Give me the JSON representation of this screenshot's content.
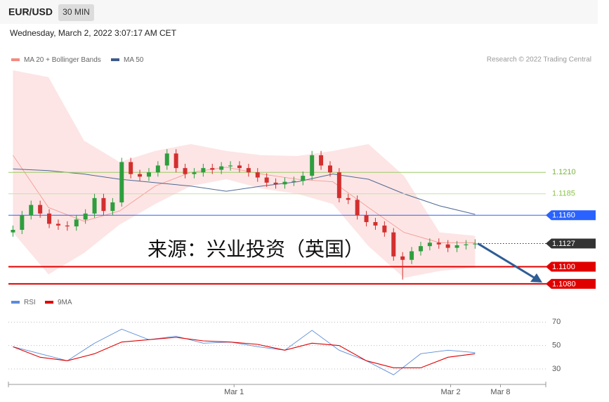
{
  "header": {
    "symbol": "EUR/USD",
    "interval": "30 MIN",
    "date": "Wednesday, March 2, 2022 3:07:17 AM CET",
    "credit": "Research © 2022 Trading Central"
  },
  "chart_data": [
    {
      "type": "candlestick",
      "xlim": [
        -0.5,
        58.8
      ],
      "ylim": [
        1.1075,
        1.1329
      ],
      "up_color": "#2e9e3e",
      "down_color": "#d32f2f",
      "open": [
        1.114,
        1.1143,
        1.116,
        1.1172,
        1.1162,
        1.115,
        1.1148,
        1.1147,
        1.1155,
        1.1162,
        1.118,
        1.1165,
        1.1175,
        1.1222,
        1.1208,
        1.1205,
        1.121,
        1.1218,
        1.1232,
        1.1215,
        1.1208,
        1.121,
        1.1215,
        1.1213,
        1.1217,
        1.1218,
        1.1215,
        1.121,
        1.1204,
        1.1198,
        1.1196,
        1.1199,
        1.12,
        1.1206,
        1.123,
        1.1218,
        1.121,
        1.118,
        1.1178,
        1.116,
        1.1152,
        1.1148,
        1.114,
        1.1112,
        1.1108,
        1.1118,
        1.1124,
        1.1128,
        1.1126,
        1.1122,
        1.1125,
        1.1126
      ],
      "high": [
        1.1148,
        1.1165,
        1.1177,
        1.1177,
        1.1167,
        1.1155,
        1.1153,
        1.116,
        1.1167,
        1.1185,
        1.1185,
        1.118,
        1.1227,
        1.1227,
        1.1213,
        1.1215,
        1.1223,
        1.1237,
        1.1237,
        1.122,
        1.1215,
        1.122,
        1.122,
        1.1222,
        1.1223,
        1.1223,
        1.122,
        1.1215,
        1.1209,
        1.1203,
        1.1204,
        1.1205,
        1.1211,
        1.1235,
        1.1235,
        1.1223,
        1.1215,
        1.1185,
        1.1183,
        1.1165,
        1.1157,
        1.1153,
        1.1145,
        1.1117,
        1.1123,
        1.1129,
        1.1133,
        1.1133,
        1.1131,
        1.113,
        1.1131,
        1.1132
      ],
      "low": [
        1.1135,
        1.1138,
        1.1155,
        1.1157,
        1.1145,
        1.1143,
        1.1142,
        1.1142,
        1.115,
        1.1157,
        1.116,
        1.116,
        1.117,
        1.1203,
        1.12,
        1.12,
        1.1205,
        1.1213,
        1.121,
        1.1203,
        1.1203,
        1.1205,
        1.1208,
        1.1208,
        1.1212,
        1.121,
        1.1205,
        1.1199,
        1.1193,
        1.1191,
        1.1191,
        1.1194,
        1.1195,
        1.1201,
        1.1213,
        1.1205,
        1.1175,
        1.1173,
        1.1155,
        1.1147,
        1.1143,
        1.1135,
        1.1107,
        1.1085,
        1.1103,
        1.1113,
        1.1119,
        1.1121,
        1.1117,
        1.1117,
        1.112,
        1.1121
      ],
      "close": [
        1.1143,
        1.116,
        1.1172,
        1.1162,
        1.115,
        1.1148,
        1.1147,
        1.1155,
        1.1162,
        1.118,
        1.1165,
        1.1175,
        1.1222,
        1.1208,
        1.1205,
        1.121,
        1.1218,
        1.1232,
        1.1215,
        1.1208,
        1.121,
        1.1215,
        1.1213,
        1.1217,
        1.1218,
        1.1215,
        1.121,
        1.1204,
        1.1198,
        1.1196,
        1.1199,
        1.12,
        1.1206,
        1.123,
        1.1218,
        1.121,
        1.118,
        1.1178,
        1.116,
        1.1152,
        1.1148,
        1.114,
        1.1112,
        1.1108,
        1.1118,
        1.1124,
        1.1128,
        1.1126,
        1.1122,
        1.1125,
        1.1126,
        1.1127
      ],
      "series": [
        {
          "name": "MA 20 + Bollinger Bands",
          "color": "#f28b82",
          "values": [
            1.123,
            1.1169,
            1.1153,
            1.1165,
            1.1194,
            1.121,
            1.1216,
            1.1208,
            1.1202,
            1.1199,
            1.1169,
            1.114,
            1.1128,
            1.1128
          ],
          "upper": [
            1.1329,
            1.1321,
            1.1247,
            1.1222,
            1.1235,
            1.1243,
            1.1235,
            1.123,
            1.1229,
            1.1235,
            1.1243,
            1.1206,
            1.114,
            1.1136
          ],
          "lower": [
            1.114,
            1.1091,
            1.1116,
            1.1149,
            1.1173,
            1.1194,
            1.1202,
            1.1191,
            1.1185,
            1.1173,
            1.1124,
            1.1087,
            1.1095,
            1.1099
          ]
        },
        {
          "name": "MA 50",
          "color": "#3d5a8a",
          "values": [
            1.1214,
            1.1212,
            1.1208,
            1.1202,
            1.1198,
            1.1194,
            1.1188,
            1.1194,
            1.1199,
            1.1208,
            1.1202,
            1.1185,
            1.1171,
            1.1161
          ]
        }
      ],
      "levels": [
        {
          "value": 1.121,
          "label": "1.1210",
          "color": "#9ccc65",
          "style": "thin"
        },
        {
          "value": 1.1185,
          "label": "1.1185",
          "color": "#c5e1a5",
          "style": "thin"
        },
        {
          "value": 1.116,
          "label": "1.1160",
          "color": "#2962ff",
          "style": "badge"
        },
        {
          "value": 1.1127,
          "label": "1.1127",
          "color": "#333333",
          "style": "dotted"
        },
        {
          "value": 1.11,
          "label": "1.1100",
          "color": "#e00000",
          "style": "thick"
        },
        {
          "value": 1.108,
          "label": "1.1080",
          "color": "#e00000",
          "style": "thick"
        }
      ],
      "watermark": "来源：兴业投资（英国）"
    },
    {
      "type": "line",
      "xlim": [
        -0.5,
        58.8
      ],
      "ylim": [
        18,
        78
      ],
      "yticks": [
        30,
        50,
        70
      ],
      "xticks": [
        {
          "value": 24.4,
          "label": "Mar 1"
        },
        {
          "value": 48.3,
          "label": "Mar 2"
        },
        {
          "value": 53.8,
          "label": "Mar 8"
        }
      ],
      "series": [
        {
          "name": "RSI",
          "color": "#5b8bd9",
          "values": [
            49,
            43,
            37,
            52,
            64,
            55,
            58,
            52,
            53,
            49,
            46,
            63,
            46,
            37,
            25,
            43,
            46,
            44
          ]
        },
        {
          "name": "9MA",
          "color": "#e00000",
          "values": [
            49,
            40,
            37,
            43,
            53,
            55,
            57,
            54,
            53,
            51,
            46,
            52,
            50,
            37,
            31,
            31,
            40,
            43
          ]
        }
      ]
    }
  ]
}
